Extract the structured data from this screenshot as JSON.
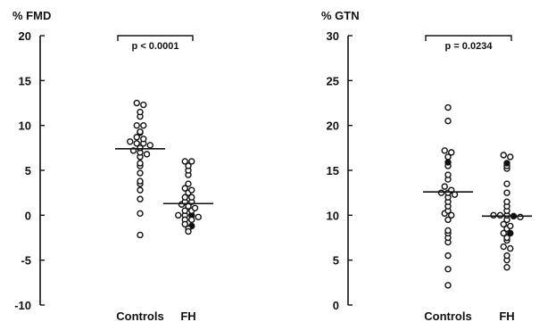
{
  "chart_data": [
    {
      "type": "scatter",
      "ylabel": "% FMD",
      "ylim": [
        -10,
        20
      ],
      "yticks": [
        -10,
        -5,
        0,
        5,
        10,
        15,
        20
      ],
      "categories": [
        "Controls",
        "FH"
      ],
      "significance": "p < 0.0001",
      "groups": [
        {
          "name": "Controls",
          "mean": 7.4,
          "open": [
            12.5,
            12.3,
            11.5,
            11.0,
            10.0,
            10.0,
            9.3,
            9.2,
            8.7,
            8.5,
            8.2,
            8.0,
            8.0,
            7.8,
            7.5,
            7.2,
            7.0,
            6.8,
            6.5,
            5.8,
            5.5,
            4.7,
            3.8,
            3.5,
            2.8,
            1.8,
            0.2,
            -2.2
          ],
          "filled": []
        },
        {
          "name": "FH",
          "mean": 1.3,
          "open": [
            6.0,
            6.0,
            5.5,
            5.0,
            4.5,
            3.5,
            3.0,
            2.8,
            2.5,
            2.0,
            2.0,
            1.5,
            1.5,
            1.2,
            1.0,
            0.8,
            0.5,
            0.5,
            0.0,
            0.0,
            -0.2,
            -0.5,
            -0.5,
            -1.0,
            -1.5,
            -1.8
          ],
          "filled": [
            0.0,
            -1.2
          ]
        }
      ]
    },
    {
      "type": "scatter",
      "ylabel": "% GTN",
      "ylim": [
        0,
        30
      ],
      "yticks": [
        0,
        5,
        10,
        15,
        20,
        25,
        30
      ],
      "categories": [
        "Controls",
        "FH"
      ],
      "significance": "p = 0.0234",
      "groups": [
        {
          "name": "Controls",
          "mean": 12.6,
          "open": [
            22.0,
            20.5,
            17.2,
            17.0,
            16.5,
            15.5,
            14.5,
            14.0,
            13.2,
            12.8,
            12.5,
            12.5,
            12.3,
            12.0,
            11.5,
            11.0,
            10.5,
            10.2,
            10.0,
            9.5,
            8.3,
            8.0,
            7.5,
            7.0,
            5.5,
            4.0,
            2.2
          ],
          "filled": [
            15.9
          ]
        },
        {
          "name": "FH",
          "mean": 9.9,
          "open": [
            16.7,
            16.5,
            15.5,
            15.2,
            13.5,
            12.5,
            11.5,
            11.0,
            10.5,
            10.0,
            10.0,
            10.0,
            9.8,
            9.5,
            9.0,
            8.8,
            8.5,
            8.0,
            7.5,
            7.2,
            6.5,
            6.3,
            5.5,
            5.0,
            4.2
          ],
          "filled": [
            15.8,
            9.9,
            8.0
          ]
        }
      ]
    }
  ]
}
